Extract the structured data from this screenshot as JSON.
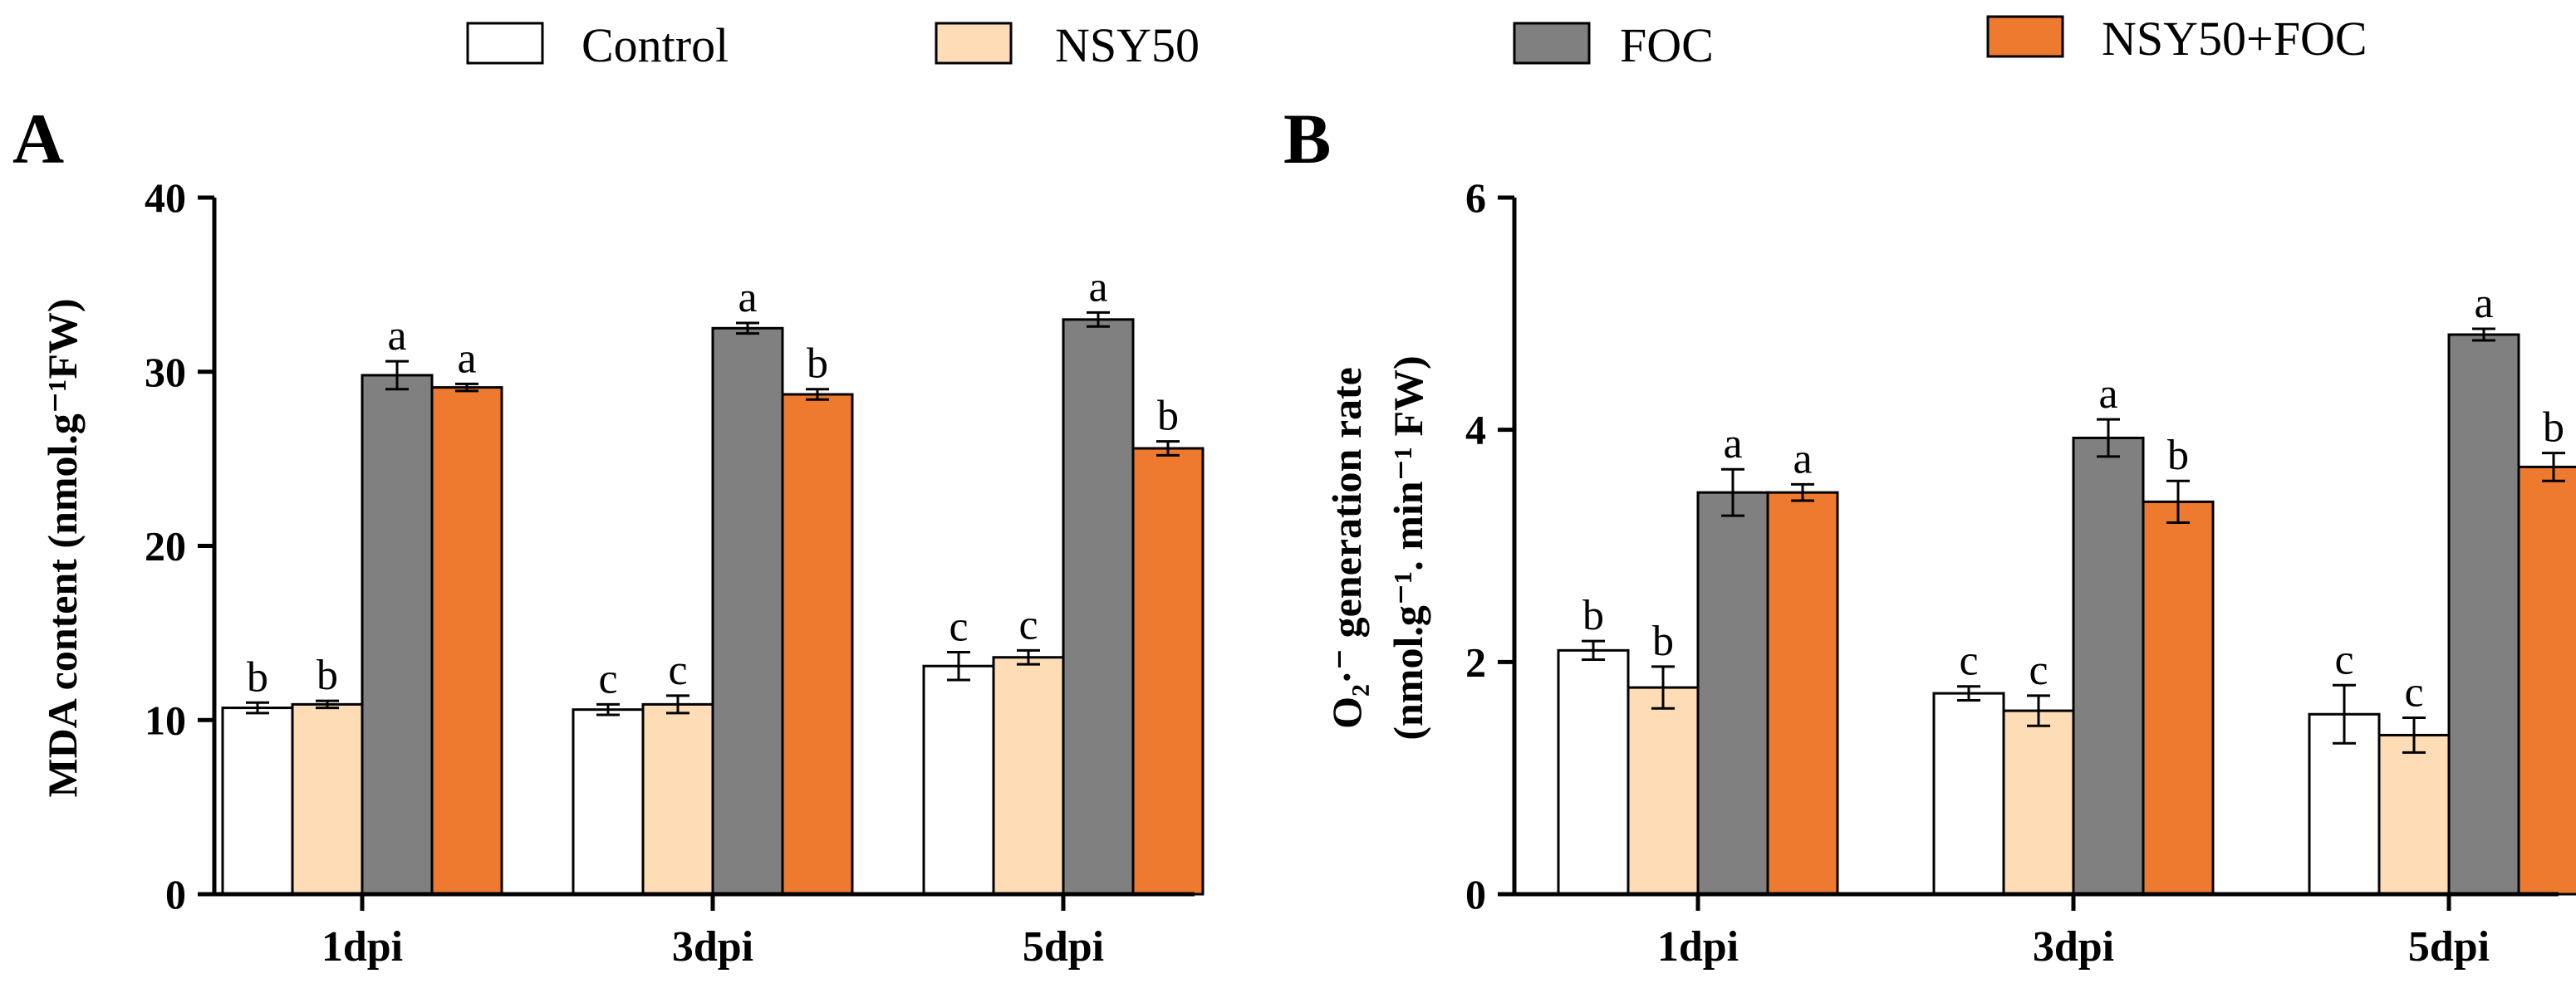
{
  "legend": [
    {
      "label": "Control",
      "color": "#ffffff"
    },
    {
      "label": "NSY50",
      "color": "#fddcb6"
    },
    {
      "label": "FOC",
      "color": "#808080"
    },
    {
      "label": "NSY50+FOC",
      "color": "#ee7a30"
    }
  ],
  "chart_data": [
    {
      "type": "bar",
      "panel_label": "A",
      "ylabel": "MDA content (nmol.g⁻¹FW)",
      "categories": [
        "1dpi",
        "3dpi",
        "5dpi"
      ],
      "ylim": [
        0,
        40
      ],
      "yticks": [
        "0",
        "10",
        "20",
        "30",
        "40"
      ],
      "series": [
        {
          "name": "Control",
          "values": [
            10.7,
            10.6,
            13.1
          ],
          "errors": [
            0.3,
            0.3,
            0.8
          ],
          "letters": [
            "b",
            "c",
            "c"
          ]
        },
        {
          "name": "NSY50",
          "values": [
            10.9,
            10.9,
            13.6
          ],
          "errors": [
            0.2,
            0.5,
            0.4
          ],
          "letters": [
            "b",
            "c",
            "c"
          ]
        },
        {
          "name": "FOC",
          "values": [
            29.8,
            32.5,
            33.0
          ],
          "errors": [
            0.8,
            0.3,
            0.4
          ],
          "letters": [
            "a",
            "a",
            "a"
          ]
        },
        {
          "name": "NSY50+FOC",
          "values": [
            29.1,
            28.7,
            25.6
          ],
          "errors": [
            0.2,
            0.3,
            0.4
          ],
          "letters": [
            "a",
            "b",
            "b"
          ]
        }
      ]
    },
    {
      "type": "bar",
      "panel_label": "B",
      "ylabel_line1": "O₂·⁻ generation rate",
      "ylabel_line2": "(nmol.g⁻¹. min⁻¹ FW)",
      "categories": [
        "1dpi",
        "3dpi",
        "5dpi"
      ],
      "ylim": [
        0,
        6
      ],
      "yticks": [
        "0",
        "2",
        "4",
        "6"
      ],
      "series": [
        {
          "name": "Control",
          "values": [
            2.1,
            1.73,
            1.55
          ],
          "errors": [
            0.08,
            0.06,
            0.25
          ],
          "letters": [
            "b",
            "c",
            "c"
          ]
        },
        {
          "name": "NSY50",
          "values": [
            1.78,
            1.58,
            1.37
          ],
          "errors": [
            0.18,
            0.13,
            0.15
          ],
          "letters": [
            "b",
            "c",
            "c"
          ]
        },
        {
          "name": "FOC",
          "values": [
            3.46,
            3.93,
            4.82
          ],
          "errors": [
            0.2,
            0.16,
            0.05
          ],
          "letters": [
            "a",
            "a",
            "a"
          ]
        },
        {
          "name": "NSY50+FOC",
          "values": [
            3.46,
            3.38,
            3.68
          ],
          "errors": [
            0.07,
            0.18,
            0.12
          ],
          "letters": [
            "a",
            "b",
            "b"
          ]
        }
      ]
    }
  ]
}
